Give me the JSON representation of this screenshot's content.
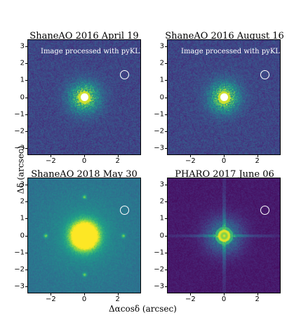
{
  "panels": [
    {
      "title": "ShaneAO 2016 April 19",
      "overlay": "Image processed with pyKLIP"
    },
    {
      "title": "ShaneAO 2016 August 16",
      "overlay": "Image processed with pyKLIP"
    },
    {
      "title": "ShaneAO 2018 May 30",
      "overlay": ""
    },
    {
      "title": "PHARO 2017 June 06",
      "overlay": ""
    }
  ],
  "axes": {
    "xlabel": "Δαcosδ (arcsec)",
    "ylabel": "Δδ (arcsec)",
    "x_ticks": [
      "−2",
      "0",
      "2"
    ],
    "y_ticks": [
      "3",
      "2",
      "1",
      "0",
      "−1",
      "−2",
      "−3"
    ]
  },
  "colors": {
    "background_dark": "#3b1f64",
    "peak": "#f5e31e",
    "marker": "#ffffff"
  }
}
